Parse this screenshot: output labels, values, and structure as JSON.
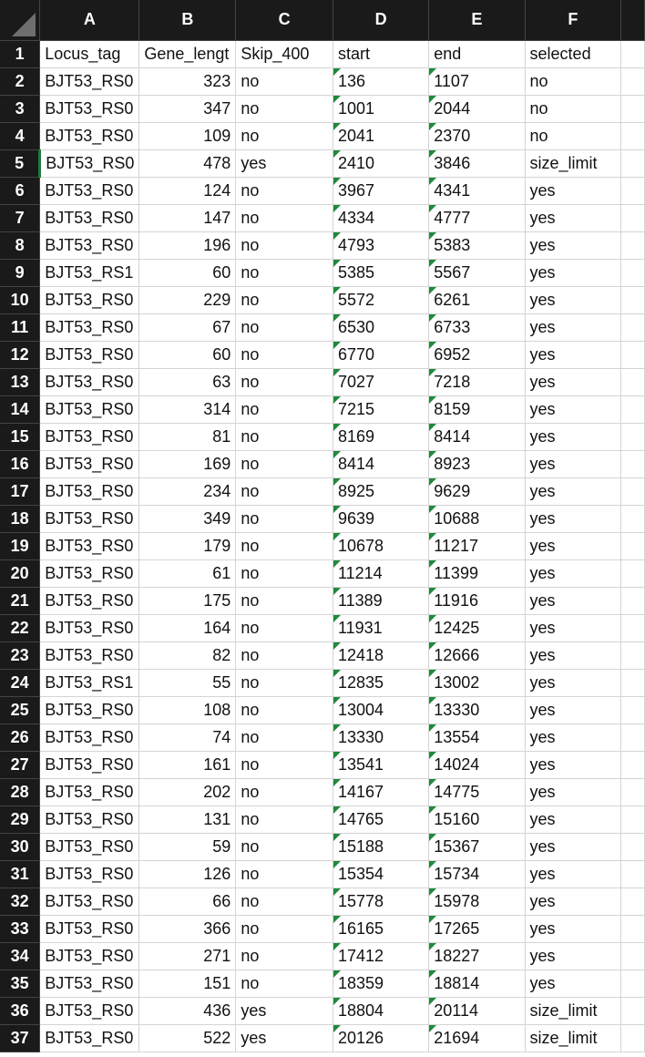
{
  "columns": [
    "A",
    "B",
    "C",
    "D",
    "E",
    "F"
  ],
  "header_row": [
    "Locus_tag",
    "Gene_lengt",
    "Skip_400",
    "start",
    "end",
    "selected"
  ],
  "rows": [
    {
      "n": "2",
      "a": "BJT53_RS0",
      "b": "323",
      "c": "no",
      "d": "136",
      "e": "1107",
      "f": "no"
    },
    {
      "n": "3",
      "a": "BJT53_RS0",
      "b": "347",
      "c": "no",
      "d": "1001",
      "e": "2044",
      "f": "no"
    },
    {
      "n": "4",
      "a": "BJT53_RS0",
      "b": "109",
      "c": "no",
      "d": "2041",
      "e": "2370",
      "f": "no"
    },
    {
      "n": "5",
      "a": "BJT53_RS0",
      "b": "478",
      "c": "yes",
      "d": "2410",
      "e": "3846",
      "f": "size_limit"
    },
    {
      "n": "6",
      "a": "BJT53_RS0",
      "b": "124",
      "c": "no",
      "d": "3967",
      "e": "4341",
      "f": "yes"
    },
    {
      "n": "7",
      "a": "BJT53_RS0",
      "b": "147",
      "c": "no",
      "d": "4334",
      "e": "4777",
      "f": "yes"
    },
    {
      "n": "8",
      "a": "BJT53_RS0",
      "b": "196",
      "c": "no",
      "d": "4793",
      "e": "5383",
      "f": "yes"
    },
    {
      "n": "9",
      "a": "BJT53_RS1",
      "b": "60",
      "c": "no",
      "d": "5385",
      "e": "5567",
      "f": "yes"
    },
    {
      "n": "10",
      "a": "BJT53_RS0",
      "b": "229",
      "c": "no",
      "d": "5572",
      "e": "6261",
      "f": "yes"
    },
    {
      "n": "11",
      "a": "BJT53_RS0",
      "b": "67",
      "c": "no",
      "d": "6530",
      "e": "6733",
      "f": "yes"
    },
    {
      "n": "12",
      "a": "BJT53_RS0",
      "b": "60",
      "c": "no",
      "d": "6770",
      "e": "6952",
      "f": "yes"
    },
    {
      "n": "13",
      "a": "BJT53_RS0",
      "b": "63",
      "c": "no",
      "d": "7027",
      "e": "7218",
      "f": "yes"
    },
    {
      "n": "14",
      "a": "BJT53_RS0",
      "b": "314",
      "c": "no",
      "d": "7215",
      "e": "8159",
      "f": "yes"
    },
    {
      "n": "15",
      "a": "BJT53_RS0",
      "b": "81",
      "c": "no",
      "d": "8169",
      "e": "8414",
      "f": "yes"
    },
    {
      "n": "16",
      "a": "BJT53_RS0",
      "b": "169",
      "c": "no",
      "d": "8414",
      "e": "8923",
      "f": "yes"
    },
    {
      "n": "17",
      "a": "BJT53_RS0",
      "b": "234",
      "c": "no",
      "d": "8925",
      "e": "9629",
      "f": "yes"
    },
    {
      "n": "18",
      "a": "BJT53_RS0",
      "b": "349",
      "c": "no",
      "d": "9639",
      "e": "10688",
      "f": "yes"
    },
    {
      "n": "19",
      "a": "BJT53_RS0",
      "b": "179",
      "c": "no",
      "d": "10678",
      "e": "11217",
      "f": "yes"
    },
    {
      "n": "20",
      "a": "BJT53_RS0",
      "b": "61",
      "c": "no",
      "d": "11214",
      "e": "11399",
      "f": "yes"
    },
    {
      "n": "21",
      "a": "BJT53_RS0",
      "b": "175",
      "c": "no",
      "d": "11389",
      "e": "11916",
      "f": "yes"
    },
    {
      "n": "22",
      "a": "BJT53_RS0",
      "b": "164",
      "c": "no",
      "d": "11931",
      "e": "12425",
      "f": "yes"
    },
    {
      "n": "23",
      "a": "BJT53_RS0",
      "b": "82",
      "c": "no",
      "d": "12418",
      "e": "12666",
      "f": "yes"
    },
    {
      "n": "24",
      "a": "BJT53_RS1",
      "b": "55",
      "c": "no",
      "d": "12835",
      "e": "13002",
      "f": "yes"
    },
    {
      "n": "25",
      "a": "BJT53_RS0",
      "b": "108",
      "c": "no",
      "d": "13004",
      "e": "13330",
      "f": "yes"
    },
    {
      "n": "26",
      "a": "BJT53_RS0",
      "b": "74",
      "c": "no",
      "d": "13330",
      "e": "13554",
      "f": "yes"
    },
    {
      "n": "27",
      "a": "BJT53_RS0",
      "b": "161",
      "c": "no",
      "d": "13541",
      "e": "14024",
      "f": "yes"
    },
    {
      "n": "28",
      "a": "BJT53_RS0",
      "b": "202",
      "c": "no",
      "d": "14167",
      "e": "14775",
      "f": "yes"
    },
    {
      "n": "29",
      "a": "BJT53_RS0",
      "b": "131",
      "c": "no",
      "d": "14765",
      "e": "15160",
      "f": "yes"
    },
    {
      "n": "30",
      "a": "BJT53_RS0",
      "b": "59",
      "c": "no",
      "d": "15188",
      "e": "15367",
      "f": "yes"
    },
    {
      "n": "31",
      "a": "BJT53_RS0",
      "b": "126",
      "c": "no",
      "d": "15354",
      "e": "15734",
      "f": "yes"
    },
    {
      "n": "32",
      "a": "BJT53_RS0",
      "b": "66",
      "c": "no",
      "d": "15778",
      "e": "15978",
      "f": "yes"
    },
    {
      "n": "33",
      "a": "BJT53_RS0",
      "b": "366",
      "c": "no",
      "d": "16165",
      "e": "17265",
      "f": "yes"
    },
    {
      "n": "34",
      "a": "BJT53_RS0",
      "b": "271",
      "c": "no",
      "d": "17412",
      "e": "18227",
      "f": "yes"
    },
    {
      "n": "35",
      "a": "BJT53_RS0",
      "b": "151",
      "c": "no",
      "d": "18359",
      "e": "18814",
      "f": "yes"
    },
    {
      "n": "36",
      "a": "BJT53_RS0",
      "b": "436",
      "c": "yes",
      "d": "18804",
      "e": "20114",
      "f": "size_limit"
    },
    {
      "n": "37",
      "a": "BJT53_RS0",
      "b": "522",
      "c": "yes",
      "d": "20126",
      "e": "21694",
      "f": "size_limit"
    }
  ],
  "colors": {
    "header_bg": "#1a1a1a",
    "header_text": "#ffffff",
    "grid_line": "#d4d4d4",
    "error_flag": "#1e8a3c",
    "active_row_marker": "#1f7a3a"
  },
  "icons": {
    "select_all": "select-all-triangle-icon",
    "cell_flag": "number-stored-as-text-flag-icon"
  }
}
